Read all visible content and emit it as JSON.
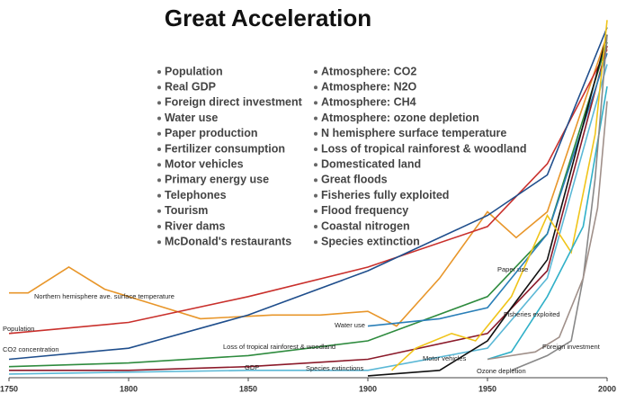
{
  "chart_data": {
    "type": "line",
    "title": "Great Acceleration",
    "indicators": [
      [
        "Population",
        "Real GDP",
        "Foreign direct investment",
        "Water use",
        "Paper production",
        "Fertilizer consumption",
        "Motor vehicles",
        "Primary energy use",
        "Telephones",
        "Tourism",
        "River dams",
        "McDonald's restaurants"
      ],
      [
        "Atmosphere: CO2",
        "Atmosphere: N2O",
        "Atmosphere: CH4",
        "Atmosphere: ozone depletion",
        "N hemisphere surface temperature",
        "Loss of tropical rainforest & woodland",
        "Domesticated land",
        "Great floods",
        "Fisheries fully exploited",
        "Flood frequency",
        "Coastal nitrogen",
        "Species extinction"
      ]
    ],
    "xlim": [
      1750,
      2000
    ],
    "xticks": [
      1750,
      1800,
      1850,
      1900,
      1950,
      2000
    ],
    "ylim": [
      0,
      100
    ],
    "series": [
      {
        "name": "Northern hemisphere ave. surface temperature",
        "color": "#e8962a",
        "x": [
          1750,
          1758,
          1775,
          1790,
          1810,
          1830,
          1860,
          1880,
          1900,
          1912,
          1930,
          1950,
          1962,
          1975,
          2000
        ],
        "values": [
          23,
          23,
          30,
          24,
          20,
          16,
          17,
          17,
          18,
          14,
          27,
          45,
          38,
          45,
          93
        ]
      },
      {
        "name": "Population",
        "color": "#c9302c",
        "x": [
          1750,
          1800,
          1850,
          1900,
          1950,
          1975,
          2000
        ],
        "values": [
          12,
          15,
          22,
          30,
          41,
          58,
          89
        ]
      },
      {
        "name": "CO2 concentration",
        "color": "#1f4e8c",
        "x": [
          1750,
          1800,
          1850,
          1900,
          1950,
          1975,
          2000
        ],
        "values": [
          5,
          8,
          17,
          29,
          44,
          55,
          95
        ]
      },
      {
        "name": "Loss of tropical rainforest & woodland",
        "color": "#2e8b3e",
        "x": [
          1750,
          1800,
          1850,
          1900,
          1950,
          1975,
          2000
        ],
        "values": [
          3,
          4,
          6,
          10,
          22,
          39,
          91
        ]
      },
      {
        "name": "GDP",
        "color": "#8b1a2a",
        "x": [
          1750,
          1800,
          1850,
          1900,
          1950,
          1975,
          2000
        ],
        "values": [
          2,
          2,
          3,
          5,
          12,
          29,
          90
        ]
      },
      {
        "name": "Species extinctions",
        "color": "#5bb8d6",
        "x": [
          1750,
          1850,
          1900,
          1950,
          1975,
          2000
        ],
        "values": [
          1,
          2,
          2,
          8,
          27,
          85
        ]
      },
      {
        "name": "Water use",
        "color": "#2a7fb8",
        "x": [
          1900,
          1930,
          1950,
          1975,
          2000
        ],
        "values": [
          14,
          16,
          19,
          39,
          88
        ]
      },
      {
        "name": "Motor vehicles",
        "color": "#111111",
        "x": [
          1900,
          1930,
          1950,
          1960,
          1975,
          2000
        ],
        "values": [
          0.5,
          2,
          10,
          19,
          32,
          93
        ]
      },
      {
        "name": "Paper use",
        "color": "#f0c419",
        "x": [
          1910,
          1920,
          1935,
          1945,
          1960,
          1975,
          1985,
          1995,
          2000
        ],
        "values": [
          2,
          8,
          12,
          10,
          22,
          44,
          34,
          66,
          97
        ]
      },
      {
        "name": "Fisheries exploited",
        "color": "#30b0c8",
        "x": [
          1950,
          1960,
          1975,
          1990,
          2000
        ],
        "values": [
          5,
          7,
          22,
          41,
          79
        ]
      },
      {
        "name": "Ozone depletion",
        "color": "#888888",
        "x": [
          1960,
          1975,
          1985,
          1990,
          1995,
          2000
        ],
        "values": [
          2,
          6,
          10,
          27,
          54,
          93
        ]
      },
      {
        "name": "Foreign investment",
        "color": "#a0908a",
        "x": [
          1950,
          1970,
          1980,
          1990,
          1996,
          2000
        ],
        "values": [
          5,
          7,
          11,
          27,
          46,
          75
        ]
      }
    ]
  }
}
